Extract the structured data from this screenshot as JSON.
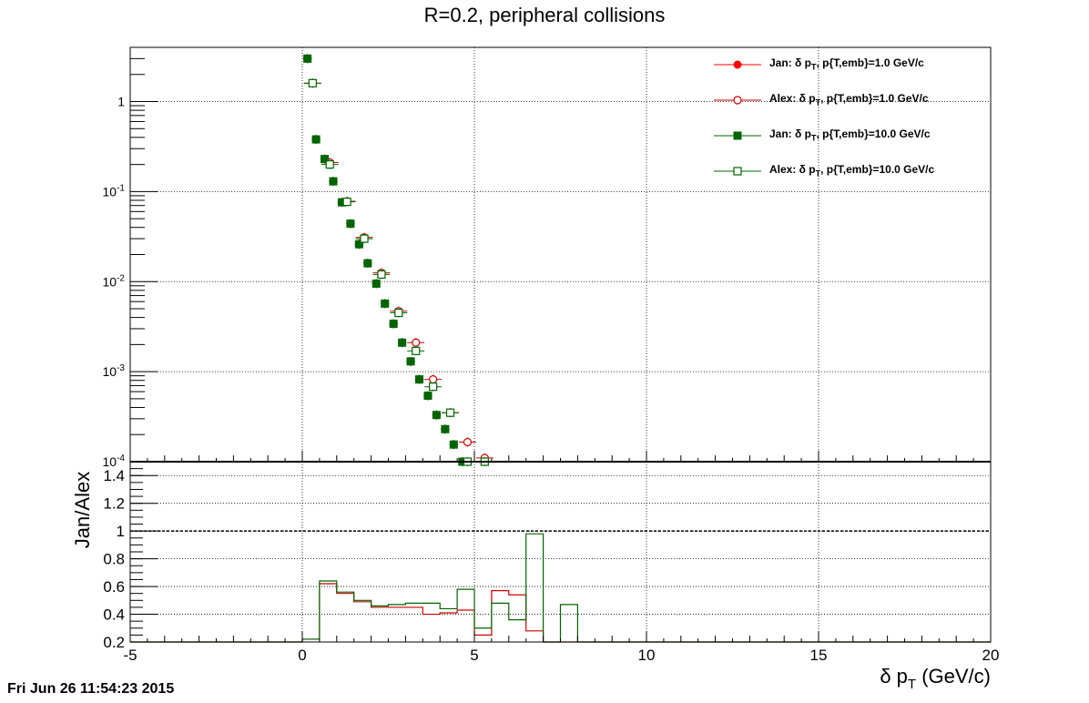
{
  "chart_data": [
    {
      "type": "scatter",
      "title": "R=0.2, peripheral collisions",
      "xlabel": "δ p_T (GeV/c)",
      "ylabel": "",
      "xlim": [
        -5,
        20
      ],
      "ylim": [
        0.0001,
        4
      ],
      "yscale": "log",
      "grid": true,
      "legend_position": "top-right",
      "x_ticks": [
        -5,
        0,
        5,
        10,
        15,
        20
      ],
      "y_tick_labels": [
        "1",
        "10^-1",
        "10^-2",
        "10^-3",
        "10^-4"
      ],
      "series": [
        {
          "name": "Jan: δ p_T, p{T,emb}=1.0 GeV/c",
          "color": "#ff0000",
          "marker": "filled-circle",
          "x": [
            0.15,
            0.4,
            0.65,
            0.9,
            1.15,
            1.4,
            1.65,
            1.9,
            2.15,
            2.4,
            2.65,
            2.9,
            3.15,
            3.4,
            3.65,
            3.9,
            4.15,
            4.4,
            4.65
          ],
          "y": [
            3.0,
            0.38,
            0.23,
            0.13,
            0.076,
            0.044,
            0.026,
            0.016,
            0.0095,
            0.0057,
            0.0034,
            0.0021,
            0.0013,
            0.00082,
            0.00054,
            0.00033,
            0.00023,
            0.000155,
            0.0001
          ]
        },
        {
          "name": "Alex: δ p_T, p{T,emb}=1.0 GeV/c",
          "color": "#cc0000",
          "marker": "open-circle",
          "x": [
            0.3,
            0.8,
            1.3,
            1.8,
            2.3,
            2.8,
            3.3,
            3.8,
            4.3,
            4.8,
            5.3
          ],
          "y": [
            1.6,
            0.21,
            0.078,
            0.031,
            0.0125,
            0.0047,
            0.0021,
            0.00082,
            0.00035,
            0.000165,
            0.00011
          ]
        },
        {
          "name": "Jan: δ p_T, p{T,emb}=10.0 GeV/c",
          "color": "#006400",
          "marker": "filled-square",
          "x": [
            0.15,
            0.4,
            0.65,
            0.9,
            1.15,
            1.4,
            1.65,
            1.9,
            2.15,
            2.4,
            2.65,
            2.9,
            3.15,
            3.4,
            3.65,
            3.9,
            4.15,
            4.4,
            4.65
          ],
          "y": [
            3.0,
            0.38,
            0.23,
            0.13,
            0.076,
            0.044,
            0.026,
            0.016,
            0.0095,
            0.0057,
            0.0034,
            0.0021,
            0.0013,
            0.00082,
            0.00054,
            0.00033,
            0.00023,
            0.000155,
            0.0001
          ]
        },
        {
          "name": "Alex: δ p_T, p{T,emb}=10.0 GeV/c",
          "color": "#006400",
          "marker": "open-square",
          "x": [
            0.3,
            0.8,
            1.3,
            1.8,
            2.3,
            2.8,
            3.3,
            3.8,
            4.3,
            4.8,
            5.3
          ],
          "y": [
            1.6,
            0.2,
            0.077,
            0.03,
            0.012,
            0.0045,
            0.0017,
            0.00068,
            0.00035,
            0.0001,
            0.0001
          ]
        }
      ]
    },
    {
      "type": "line",
      "xlabel": "δ p_T (GeV/c)",
      "ylabel": "Jan/Alex",
      "xlim": [
        -5,
        20
      ],
      "ylim": [
        0.2,
        1.5
      ],
      "grid": true,
      "x_ticks": [
        -5,
        0,
        5,
        10,
        15,
        20
      ],
      "y_ticks": [
        0.2,
        0.4,
        0.6,
        0.8,
        1,
        1.2,
        1.4
      ],
      "reference_line": 1,
      "bin_edges": [
        0,
        0.5,
        1.0,
        1.5,
        2.0,
        2.5,
        3.0,
        3.5,
        4.0,
        4.5,
        5.0,
        5.5,
        6.0,
        6.5,
        7.0,
        7.5,
        8.0
      ],
      "series": [
        {
          "name": "Jan/Alex p{T,emb}=1.0 GeV/c",
          "color": "#cc0000",
          "values": [
            0.22,
            0.62,
            0.55,
            0.49,
            0.45,
            0.45,
            0.45,
            0.4,
            0.41,
            0.43,
            0.25,
            0.57,
            0.54,
            0.28,
            0.2,
            0.2
          ]
        },
        {
          "name": "Jan/Alex p{T,emb}=10.0 GeV/c",
          "color": "#006400",
          "values": [
            0.22,
            0.64,
            0.56,
            0.5,
            0.46,
            0.47,
            0.48,
            0.48,
            0.44,
            0.58,
            0.3,
            0.48,
            0.36,
            0.98,
            0.2,
            0.47
          ]
        }
      ]
    }
  ],
  "legend": {
    "entries": [
      {
        "prefix": "Jan: δ p",
        "sub": "T",
        "suffix": ", p{T,emb}=1.0 GeV/c",
        "marker": "filled-circle",
        "color": "#ff0000"
      },
      {
        "prefix": "Alex: δ p",
        "sub": "T",
        "suffix": ", p{T,emb}=1.0 GeV/c",
        "marker": "open-circle",
        "color": "#cc0000"
      },
      {
        "prefix": "Jan: δ p",
        "sub": "T",
        "suffix": ", p{T,emb}=10.0 GeV/c",
        "marker": "filled-square",
        "color": "#006400"
      },
      {
        "prefix": "Alex: δ p",
        "sub": "T",
        "suffix": ", p{T,emb}=10.0 GeV/c",
        "marker": "open-square",
        "color": "#006400"
      }
    ]
  },
  "header": {
    "title": "R=0.2, peripheral collisions",
    "timestamp": "Fri Jun 26 11:54:23 2015"
  },
  "axis_text": {
    "ylabel_lower": "Jan/Alex",
    "xlabel_main": "δ p",
    "xlabel_sub": "T",
    "xlabel_unit": " (GeV/c)"
  }
}
